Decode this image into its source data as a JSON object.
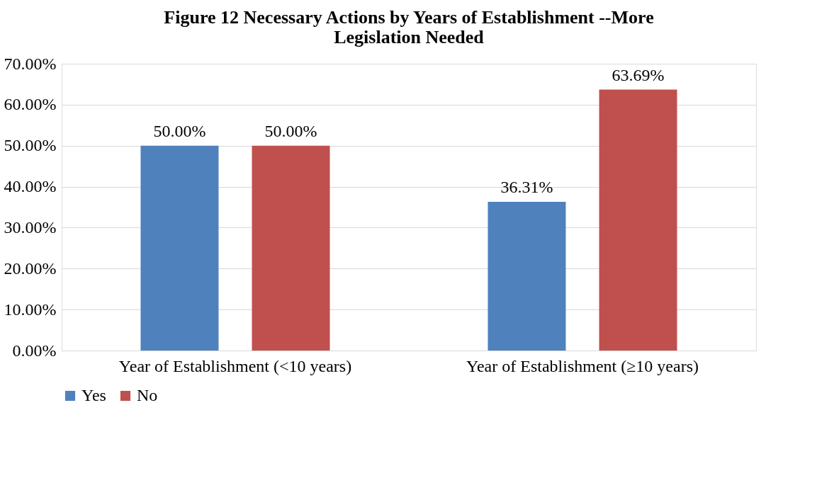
{
  "chart_data": {
    "type": "bar",
    "title": "Figure 12 Necessary Actions by Years of Establishment --More Legislation Needed",
    "categories": [
      "Year of Establishment (<10 years)",
      "Year of Establishment (≥10 years)"
    ],
    "series": [
      {
        "name": "Yes",
        "color": "#4f81bd",
        "values": [
          50,
          36.31
        ],
        "value_labels": [
          "50.00%",
          "36.31%"
        ]
      },
      {
        "name": "No",
        "color": "#c0504d",
        "values": [
          50,
          63.69
        ],
        "value_labels": [
          "50.00%",
          "63.69%"
        ]
      }
    ],
    "ylim": [
      0,
      70
    ],
    "yticks": [
      {
        "value": 0,
        "label": "0.00%"
      },
      {
        "value": 10,
        "label": "10.00%"
      },
      {
        "value": 20,
        "label": "20.00%"
      },
      {
        "value": 30,
        "label": "30.00%"
      },
      {
        "value": 40,
        "label": "40.00%"
      },
      {
        "value": 50,
        "label": "50.00%"
      },
      {
        "value": 60,
        "label": "60.00%"
      },
      {
        "value": 70,
        "label": "70.00%"
      }
    ],
    "grid": "y",
    "legend": "bottom"
  }
}
